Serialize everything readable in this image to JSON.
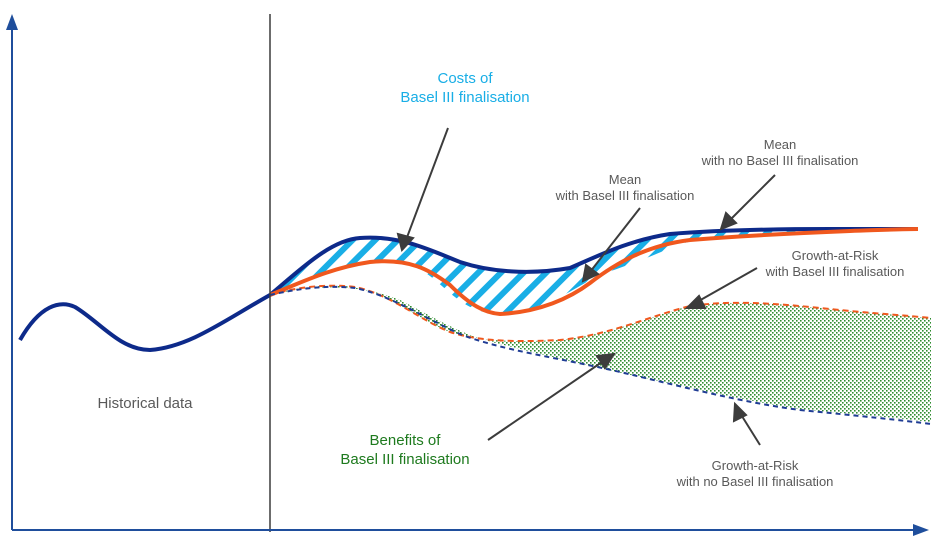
{
  "labels": {
    "historical": "Historical data",
    "costs": [
      "Costs of",
      "Basel III finalisation"
    ],
    "benefits": [
      "Benefits of",
      "Basel III finalisation"
    ],
    "mean_with": [
      "Mean",
      "with Basel III finalisation"
    ],
    "mean_without": [
      "Mean",
      "with no Basel III finalisation"
    ],
    "gar_with": [
      "Growth-at-Risk",
      "with Basel III finalisation"
    ],
    "gar_without": [
      "Growth-at-Risk",
      "with no Basel III finalisation"
    ]
  },
  "colors": {
    "axis": "#1f4e9c",
    "mean_no_basel": "#0d2a8a",
    "mean_basel": "#f0581e",
    "gar_basel": "#f0581e",
    "gar_no_basel": "#1f3c94",
    "costs_hatch": "#19aee6",
    "benefits_dots": "#2e8b2e",
    "divider": "#3c3c3c",
    "arrow": "#3c3c3c"
  }
}
